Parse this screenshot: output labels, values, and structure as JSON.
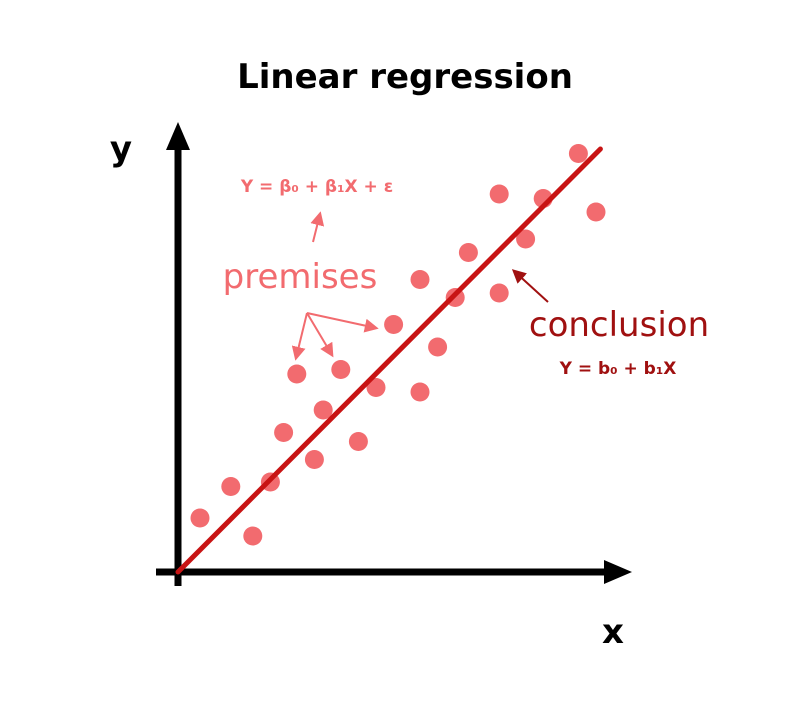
{
  "title": "Linear regression",
  "colors": {
    "points": "#f26b6f",
    "regression_line": "#c81414",
    "axes": "#000000",
    "premises": "#f26b6f",
    "conclusion": "#a01010"
  },
  "annotations": {
    "model_formula": "Y = β₀ + β₁X + ε",
    "premises_label": "premises",
    "conclusion_label": "conclusion",
    "fit_formula": "Y = b₀ + b₁X"
  },
  "chart_data": {
    "type": "scatter",
    "xlabel": "x",
    "ylabel": "y",
    "xlim": [
      0,
      10
    ],
    "ylim": [
      0,
      10
    ],
    "grid": false,
    "points": [
      {
        "x": 0.5,
        "y": 1.2
      },
      {
        "x": 1.2,
        "y": 1.9
      },
      {
        "x": 1.7,
        "y": 0.8
      },
      {
        "x": 2.1,
        "y": 2.0
      },
      {
        "x": 2.4,
        "y": 3.1
      },
      {
        "x": 2.7,
        "y": 4.4
      },
      {
        "x": 3.1,
        "y": 2.5
      },
      {
        "x": 3.3,
        "y": 3.6
      },
      {
        "x": 3.7,
        "y": 4.5
      },
      {
        "x": 4.1,
        "y": 2.9
      },
      {
        "x": 4.5,
        "y": 4.1
      },
      {
        "x": 4.9,
        "y": 5.5
      },
      {
        "x": 5.5,
        "y": 6.5
      },
      {
        "x": 5.5,
        "y": 4.0
      },
      {
        "x": 5.9,
        "y": 5.0
      },
      {
        "x": 6.3,
        "y": 6.1
      },
      {
        "x": 6.6,
        "y": 7.1
      },
      {
        "x": 7.3,
        "y": 6.2
      },
      {
        "x": 7.3,
        "y": 8.4
      },
      {
        "x": 7.9,
        "y": 7.4
      },
      {
        "x": 8.3,
        "y": 8.3
      },
      {
        "x": 9.1,
        "y": 9.3
      },
      {
        "x": 9.5,
        "y": 8.0
      }
    ],
    "fit_line": {
      "x": [
        0,
        9.6
      ],
      "y": [
        0,
        9.4
      ]
    }
  }
}
